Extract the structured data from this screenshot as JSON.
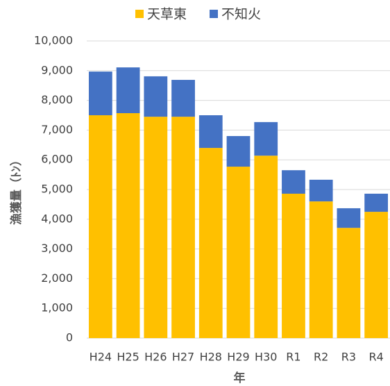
{
  "chart_data": {
    "type": "stacked_bar",
    "x_label": "年",
    "y_label": "漁獲量（ﾄﾝ）",
    "categories": [
      "H24",
      "H25",
      "H26",
      "H27",
      "H28",
      "H29",
      "H30",
      "R1",
      "R2",
      "R3",
      "R4"
    ],
    "series": [
      {
        "name": "天草東",
        "color": "#FFC000",
        "values": [
          7500,
          7570,
          7450,
          7450,
          6400,
          5770,
          6140,
          4860,
          4600,
          3710,
          4250
        ]
      },
      {
        "name": "不知火",
        "color": "#4472C4",
        "values": [
          1470,
          1540,
          1360,
          1240,
          1100,
          1030,
          1130,
          790,
          730,
          660,
          610
        ]
      }
    ],
    "ylim": [
      0,
      10000
    ],
    "yticks": [
      0,
      {
        "value": 1000,
        "label": "1,000"
      },
      {
        "value": 2000,
        "label": "2,000"
      },
      {
        "value": 3000,
        "label": "3,000"
      },
      {
        "value": 4000,
        "label": "4,000"
      },
      {
        "value": 5000,
        "label": "5,000"
      },
      {
        "value": 6000,
        "label": "6,000"
      },
      {
        "value": 7000,
        "label": "7,000"
      },
      {
        "value": 8000,
        "label": "8,000"
      },
      {
        "value": 9000,
        "label": "9,000"
      },
      {
        "value": 10000,
        "label": "10,000"
      }
    ],
    "grid": true,
    "legend": "top"
  }
}
